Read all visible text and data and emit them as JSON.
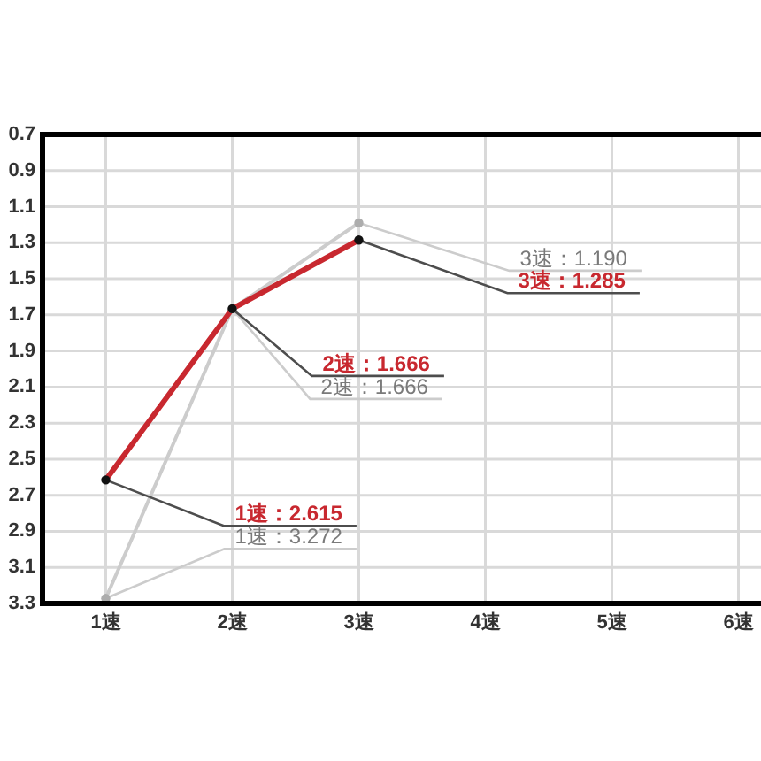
{
  "chart_data": {
    "type": "line",
    "categories": [
      "1速",
      "2速",
      "3速",
      "4速",
      "5速",
      "6速"
    ],
    "series": [
      {
        "color": "#cccccc",
        "values": [
          3.272,
          1.666,
          1.19,
          null,
          null,
          null
        ],
        "value_labels": [
          "1速：3.272",
          "2速：1.666",
          "3速：1.190",
          null,
          null,
          null
        ]
      },
      {
        "color": "#c8282f",
        "values": [
          2.615,
          1.666,
          1.285,
          null,
          null,
          null
        ],
        "value_labels": [
          "1速：2.615",
          "2速：1.666",
          "3速：1.285",
          null,
          null,
          null
        ]
      }
    ],
    "ylim": [
      3.3,
      0.7
    ],
    "yticks": [
      0.7,
      0.9,
      1.1,
      1.3,
      1.5,
      1.7,
      1.9,
      2.1,
      2.3,
      2.5,
      2.7,
      2.9,
      3.1,
      3.3
    ],
    "grid": true,
    "marker": "circle"
  }
}
